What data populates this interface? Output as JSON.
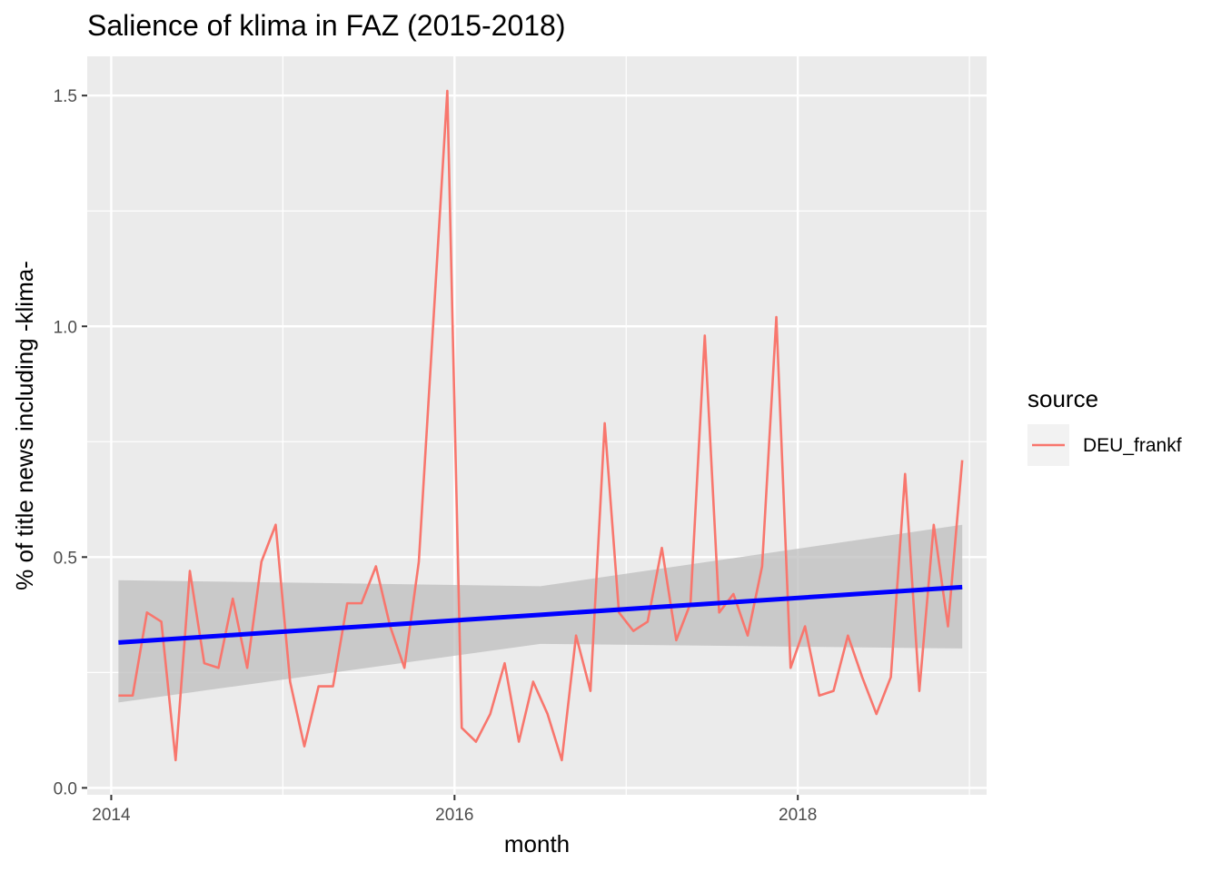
{
  "chart_data": {
    "type": "line",
    "title": "Salience of klima in FAZ (2015-2018)",
    "xlabel": "month",
    "ylabel": "% of title news including -klima-",
    "xlim": [
      2013.86,
      2019.1
    ],
    "ylim": [
      -0.015,
      1.585
    ],
    "x_ticks": [
      2014,
      2016,
      2018
    ],
    "x_tick_labels": [
      "2014",
      "2016",
      "2018"
    ],
    "y_ticks": [
      0.0,
      0.5,
      1.0,
      1.5
    ],
    "y_tick_labels": [
      "0.0",
      "0.5",
      "1.0",
      "1.5"
    ],
    "grid": true,
    "legend": {
      "title": "source",
      "position": "right"
    },
    "colors": {
      "series": "#f8766d",
      "trend": "#0000ff",
      "ribbon": "#bebebe",
      "panel": "#ebebeb",
      "grid": "#ffffff"
    },
    "series": [
      {
        "name": "DEU_frankf",
        "x": [
          2014.042,
          2014.125,
          2014.208,
          2014.292,
          2014.375,
          2014.458,
          2014.542,
          2014.625,
          2014.708,
          2014.792,
          2014.875,
          2014.958,
          2015.042,
          2015.125,
          2015.208,
          2015.292,
          2015.375,
          2015.458,
          2015.542,
          2015.625,
          2015.708,
          2015.792,
          2015.875,
          2015.958,
          2016.042,
          2016.125,
          2016.208,
          2016.292,
          2016.375,
          2016.458,
          2016.542,
          2016.625,
          2016.708,
          2016.792,
          2016.875,
          2016.958,
          2017.042,
          2017.125,
          2017.208,
          2017.292,
          2017.375,
          2017.458,
          2017.542,
          2017.625,
          2017.708,
          2017.792,
          2017.875,
          2017.958,
          2018.042,
          2018.125,
          2018.208,
          2018.292,
          2018.375,
          2018.458,
          2018.542,
          2018.625,
          2018.708,
          2018.792,
          2018.875,
          2018.958
        ],
        "values": [
          0.2,
          0.2,
          0.38,
          0.36,
          0.06,
          0.47,
          0.27,
          0.26,
          0.41,
          0.26,
          0.49,
          0.57,
          0.23,
          0.09,
          0.22,
          0.22,
          0.4,
          0.4,
          0.48,
          0.35,
          0.26,
          0.49,
          1.0,
          1.51,
          0.13,
          0.1,
          0.16,
          0.27,
          0.1,
          0.23,
          0.16,
          0.06,
          0.33,
          0.21,
          0.79,
          0.38,
          0.34,
          0.36,
          0.52,
          0.32,
          0.4,
          0.98,
          0.38,
          0.42,
          0.33,
          0.48,
          1.02,
          0.26,
          0.35,
          0.2,
          0.21,
          0.33,
          0.24,
          0.16,
          0.24,
          0.68,
          0.21,
          0.57,
          0.35,
          0.71
        ]
      }
    ],
    "trend": {
      "method": "linear",
      "x": [
        2014.042,
        2016.5,
        2018.958
      ],
      "values": [
        0.315,
        0.375,
        0.435
      ],
      "ci_lower": [
        0.185,
        0.312,
        0.302
      ],
      "ci_upper": [
        0.45,
        0.437,
        0.57
      ]
    }
  }
}
